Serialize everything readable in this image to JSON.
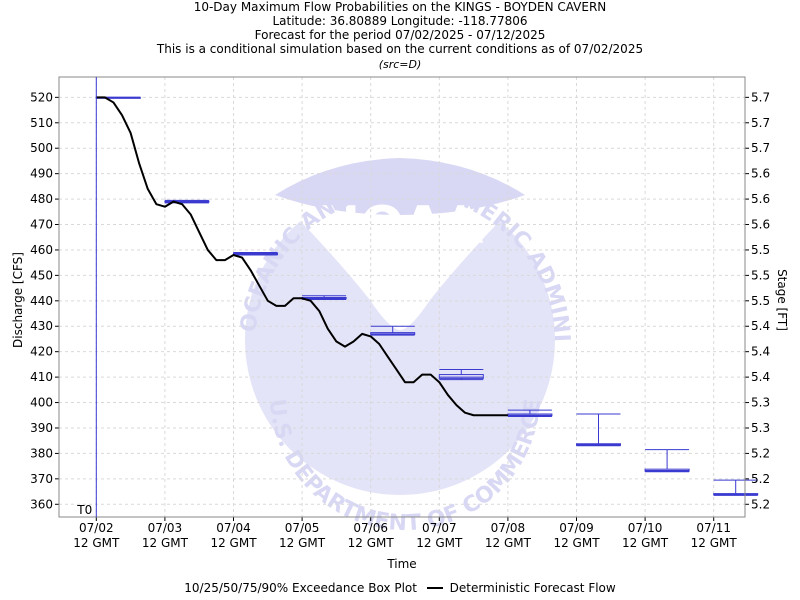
{
  "titles": {
    "line1": "10-Day Maximum Flow Probabilities on the KINGS - BOYDEN CAVERN",
    "line2": "Latitude: 36.80889 Longitude: -118.77806",
    "line3": "Forecast for the period 07/02/2025 - 07/12/2025",
    "line4": "This is a conditional simulation based on the current conditions as of 07/02/2025",
    "line5": "(src=D)"
  },
  "legend": {
    "box_label": "10/25/50/75/90% Exceedance Box Plot",
    "line_label": "Deterministic Forecast Flow"
  },
  "colors": {
    "box": "#3a3ad0",
    "line": "#000000",
    "grid": "#d9d9d9",
    "watermark": "#d8d8f4"
  },
  "watermark": {
    "top_text": "NATIONAL OCEANIC AND ATMOSPHERIC ADMINISTRATION",
    "bottom_text": "U.S. DEPARTMENT OF COMMERCE",
    "logo_text": "NOAA"
  },
  "chart_data": {
    "type": "line",
    "xlabel": "Time",
    "ylabel": "Discharge [CFS]",
    "y2label": "Stage [FT]",
    "ylim": [
      355,
      528
    ],
    "xlim": [
      "07/02 00 GMT",
      "07/12 00 GMT"
    ],
    "grid": true,
    "t0_label": "T0",
    "t0": "07/02 12 GMT",
    "x_ticks": [
      {
        "t": "07/02 12 GMT",
        "line1": "07/02",
        "line2": "12 GMT"
      },
      {
        "t": "07/03 12 GMT",
        "line1": "07/03",
        "line2": "12 GMT"
      },
      {
        "t": "07/04 12 GMT",
        "line1": "07/04",
        "line2": "12 GMT"
      },
      {
        "t": "07/05 12 GMT",
        "line1": "07/05",
        "line2": "12 GMT"
      },
      {
        "t": "07/06 12 GMT",
        "line1": "07/06",
        "line2": "12 GMT"
      },
      {
        "t": "07/07 12 GMT",
        "line1": "07/07",
        "line2": "12 GMT"
      },
      {
        "t": "07/08 12 GMT",
        "line1": "07/08",
        "line2": "12 GMT"
      },
      {
        "t": "07/09 12 GMT",
        "line1": "07/09",
        "line2": "12 GMT"
      },
      {
        "t": "07/10 12 GMT",
        "line1": "07/10",
        "line2": "12 GMT"
      },
      {
        "t": "07/11 12 GMT",
        "line1": "07/11",
        "line2": "12 GMT"
      }
    ],
    "y_ticks": [
      360,
      370,
      380,
      390,
      400,
      410,
      420,
      430,
      440,
      450,
      460,
      470,
      480,
      490,
      500,
      510,
      520
    ],
    "stage_ticks": [
      {
        "flow": 360,
        "label": "5.2"
      },
      {
        "flow": 370,
        "label": "5.2"
      },
      {
        "flow": 380,
        "label": "5.2"
      },
      {
        "flow": 390,
        "label": "5.3"
      },
      {
        "flow": 400,
        "label": "5.3"
      },
      {
        "flow": 410,
        "label": "5.4"
      },
      {
        "flow": 420,
        "label": "5.4"
      },
      {
        "flow": 430,
        "label": "5.4"
      },
      {
        "flow": 440,
        "label": "5.5"
      },
      {
        "flow": 450,
        "label": "5.5"
      },
      {
        "flow": 460,
        "label": "5.5"
      },
      {
        "flow": 470,
        "label": "5.6"
      },
      {
        "flow": 480,
        "label": "5.6"
      },
      {
        "flow": 490,
        "label": "5.6"
      },
      {
        "flow": 500,
        "label": "5.7"
      },
      {
        "flow": 510,
        "label": "5.7"
      },
      {
        "flow": 520,
        "label": "5.7"
      }
    ],
    "deterministic": {
      "name": "Deterministic Forecast Flow",
      "x": [
        "07/02 12 GMT",
        "07/02 15 GMT",
        "07/02 18 GMT",
        "07/02 21 GMT",
        "07/03 00 GMT",
        "07/03 03 GMT",
        "07/03 06 GMT",
        "07/03 09 GMT",
        "07/03 12 GMT",
        "07/03 15 GMT",
        "07/03 18 GMT",
        "07/03 21 GMT",
        "07/04 00 GMT",
        "07/04 03 GMT",
        "07/04 06 GMT",
        "07/04 09 GMT",
        "07/04 12 GMT",
        "07/04 15 GMT",
        "07/04 18 GMT",
        "07/04 21 GMT",
        "07/05 00 GMT",
        "07/05 03 GMT",
        "07/05 06 GMT",
        "07/05 09 GMT",
        "07/05 12 GMT",
        "07/05 15 GMT",
        "07/05 18 GMT",
        "07/05 21 GMT",
        "07/06 00 GMT",
        "07/06 03 GMT",
        "07/06 06 GMT",
        "07/06 09 GMT",
        "07/06 12 GMT",
        "07/06 15 GMT",
        "07/06 18 GMT",
        "07/06 21 GMT",
        "07/07 00 GMT",
        "07/07 03 GMT",
        "07/07 06 GMT",
        "07/07 09 GMT",
        "07/07 12 GMT",
        "07/07 15 GMT",
        "07/07 18 GMT",
        "07/07 21 GMT",
        "07/08 00 GMT",
        "07/08 03 GMT",
        "07/08 06 GMT",
        "07/08 09 GMT",
        "07/08 12 GMT"
      ],
      "y": [
        520,
        520,
        518,
        513,
        506,
        494,
        484,
        478,
        477,
        479,
        478,
        474,
        467,
        460,
        456,
        456,
        458,
        457,
        452,
        446,
        440,
        438,
        438,
        441,
        441,
        440,
        436,
        429,
        424,
        422,
        424,
        427,
        426,
        423,
        418,
        413,
        408,
        408,
        411,
        411,
        408,
        403,
        399,
        396,
        395,
        395,
        395,
        395,
        395
      ]
    },
    "boxplots": [
      {
        "x": "07/02 12 GMT",
        "values": [
          520,
          520,
          520,
          520,
          520
        ]
      },
      {
        "x": "07/03 12 GMT",
        "values": [
          478.5,
          478.8,
          479.0,
          479.2,
          479.5
        ]
      },
      {
        "x": "07/04 12 GMT",
        "values": [
          458.0,
          458.2,
          458.5,
          458.7,
          459.0
        ]
      },
      {
        "x": "07/05 12 GMT",
        "values": [
          440.5,
          440.8,
          441.0,
          441.3,
          442.0
        ]
      },
      {
        "x": "07/06 12 GMT",
        "values": [
          426.5,
          426.8,
          427.0,
          427.5,
          430.0
        ]
      },
      {
        "x": "07/07 12 GMT",
        "values": [
          409.0,
          409.5,
          410.0,
          411.0,
          413.0
        ]
      },
      {
        "x": "07/08 12 GMT",
        "values": [
          394.5,
          394.8,
          395.0,
          395.5,
          397.0
        ]
      },
      {
        "x": "07/09 12 GMT",
        "values": [
          383.0,
          383.2,
          383.5,
          383.8,
          395.5
        ]
      },
      {
        "x": "07/10 12 GMT",
        "values": [
          372.8,
          373.0,
          373.3,
          373.8,
          381.5
        ]
      },
      {
        "x": "07/11 12 GMT",
        "values": [
          363.5,
          363.7,
          364.0,
          364.2,
          369.5
        ]
      }
    ]
  }
}
